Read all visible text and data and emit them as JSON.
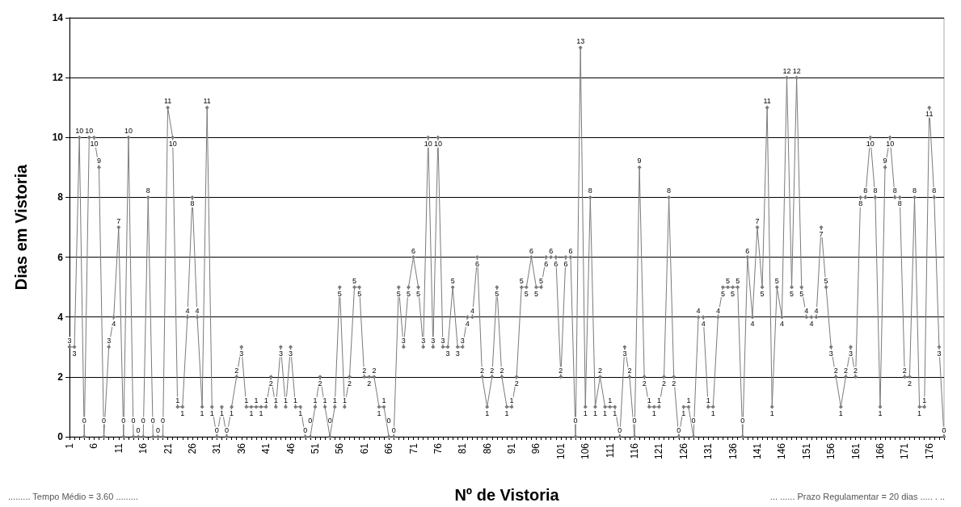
{
  "chart_data": {
    "type": "line",
    "xlabel": "Nº de Vistoria",
    "ylabel": "Dias em Vistoria",
    "categories": [
      "1",
      null,
      null,
      null,
      null,
      "6",
      null,
      null,
      null,
      null,
      "11",
      null,
      null,
      null,
      null,
      "16",
      null,
      null,
      null,
      null,
      "21",
      null,
      null,
      null,
      null,
      "26",
      null,
      null,
      null,
      null,
      "31",
      null,
      null,
      null,
      null,
      "36",
      null,
      null,
      null,
      null,
      "41",
      null,
      null,
      null,
      null,
      "46",
      null,
      null,
      null,
      null,
      "51",
      null,
      null,
      null,
      null,
      "56",
      null,
      null,
      null,
      null,
      "61",
      null,
      null,
      null,
      null,
      "66",
      null,
      null,
      null,
      null,
      "71",
      null,
      null,
      null,
      null,
      "76",
      null,
      null,
      null,
      null,
      "81",
      null,
      null,
      null,
      null,
      "86",
      null,
      null,
      null,
      null,
      "91",
      null,
      null,
      null,
      null,
      "96",
      null,
      null,
      null,
      null,
      "101",
      null,
      null,
      null,
      null,
      "106",
      null,
      null,
      null,
      null,
      "111",
      null,
      null,
      null,
      null,
      "116",
      null,
      null,
      null,
      null,
      "121",
      null,
      null,
      null,
      null,
      "126",
      null,
      null,
      null,
      null,
      "131",
      null,
      null,
      null,
      null,
      "136",
      null,
      null,
      null,
      null,
      "141",
      null,
      null,
      null,
      null,
      "146",
      null,
      null,
      null,
      null,
      "151",
      null,
      null,
      null,
      null,
      "156",
      null,
      null,
      null,
      null,
      "161",
      null,
      null,
      null,
      null,
      "166",
      null,
      null,
      null,
      null,
      "171",
      null,
      null,
      null,
      null,
      "176",
      null,
      null,
      null
    ],
    "values": [
      3,
      3,
      10,
      0,
      10,
      10,
      9,
      0,
      3,
      4,
      7,
      0,
      10,
      0,
      0,
      0,
      8,
      0,
      0,
      0,
      11,
      10,
      1,
      1,
      4,
      8,
      4,
      1,
      11,
      1,
      0,
      1,
      0,
      1,
      2,
      3,
      1,
      1,
      1,
      1,
      1,
      2,
      1,
      3,
      1,
      3,
      1,
      1,
      0,
      0,
      1,
      2,
      1,
      0,
      1,
      5,
      1,
      2,
      5,
      5,
      2,
      2,
      2,
      1,
      1,
      0,
      0,
      5,
      3,
      5,
      6,
      5,
      3,
      10,
      3,
      10,
      3,
      3,
      5,
      3,
      3,
      4,
      4,
      6,
      2,
      1,
      2,
      5,
      2,
      1,
      1,
      2,
      5,
      5,
      6,
      5,
      5,
      6,
      6,
      6,
      2,
      6,
      6,
      0,
      13,
      1,
      8,
      1,
      2,
      1,
      1,
      1,
      0,
      3,
      2,
      0,
      9,
      2,
      1,
      1,
      1,
      2,
      8,
      2,
      0,
      1,
      1,
      0,
      4,
      4,
      1,
      1,
      4,
      5,
      5,
      5,
      5,
      0,
      6,
      4,
      7,
      5,
      11,
      1,
      5,
      4,
      12,
      5,
      12,
      5,
      4,
      4,
      4,
      7,
      5,
      3,
      2,
      1,
      2,
      3,
      2,
      8,
      8,
      10,
      8,
      1,
      9,
      10,
      8,
      8,
      2,
      2,
      8,
      1,
      1,
      11,
      8,
      3,
      0
    ],
    "color": "#7a7a7a",
    "marker": "diamond",
    "data_labels": true,
    "grid": "y",
    "ylim": [
      0,
      14
    ],
    "yticks": [
      0,
      2,
      4,
      6,
      8,
      10,
      12,
      14
    ],
    "annotations": [
      "......... Tempo Médio = 3.60 .........",
      "... ...... Prazo Regulamentar = 20 dias ..... . .."
    ]
  }
}
